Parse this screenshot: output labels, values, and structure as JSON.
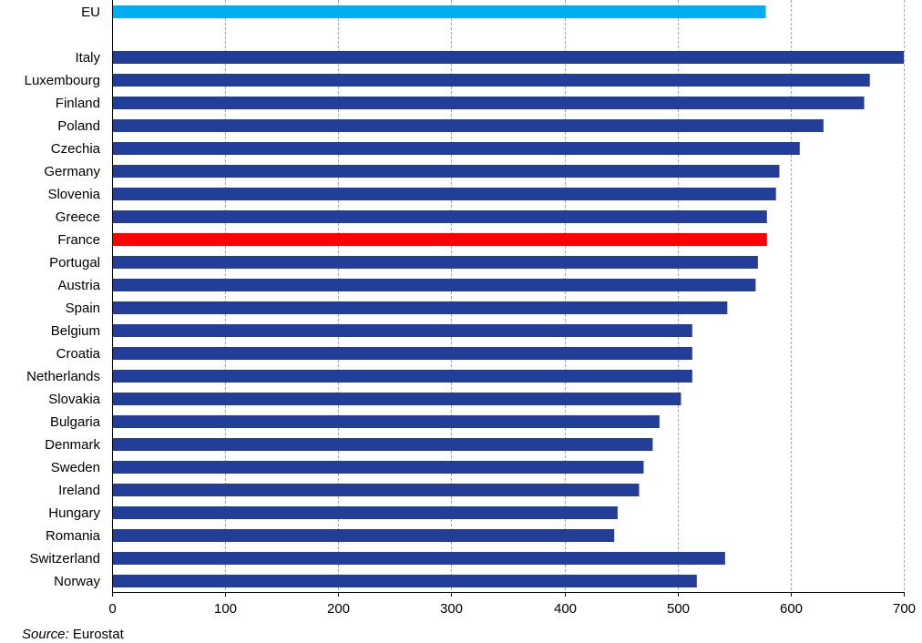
{
  "chart_data": {
    "type": "bar",
    "orientation": "horizontal",
    "categories": [
      "EU",
      "Italy",
      "Luxembourg",
      "Finland",
      "Poland",
      "Czechia",
      "Germany",
      "Slovenia",
      "Greece",
      "France",
      "Portugal",
      "Austria",
      "Spain",
      "Belgium",
      "Croatia",
      "Netherlands",
      "Slovakia",
      "Bulgaria",
      "Denmark",
      "Sweden",
      "Ireland",
      "Hungary",
      "Romania",
      "Switzerland",
      "Norway"
    ],
    "values": [
      578,
      700,
      670,
      665,
      629,
      608,
      590,
      587,
      579,
      579,
      571,
      569,
      544,
      513,
      513,
      513,
      503,
      484,
      478,
      470,
      466,
      447,
      444,
      542,
      517
    ],
    "xlim": [
      0,
      700
    ],
    "xticks": [
      0,
      100,
      200,
      300,
      400,
      500,
      600,
      700
    ],
    "grid": "vertical-dashed",
    "colors": {
      "default": "#233e99",
      "EU": "#00aeef",
      "France": "#ff0000"
    }
  },
  "source": {
    "label": "Source:",
    "text": "Eurostat"
  }
}
